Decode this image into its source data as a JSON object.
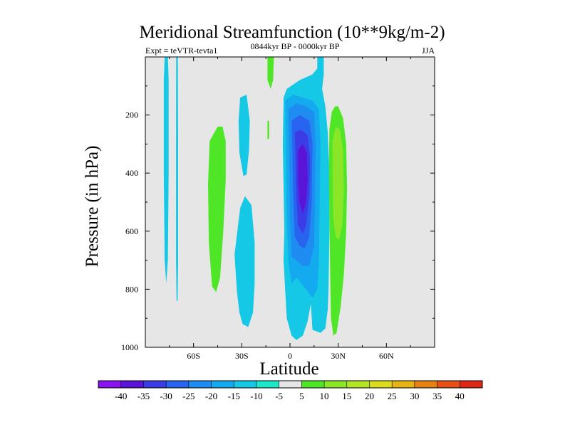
{
  "chart_data": {
    "type": "contour",
    "title": "Meridional Streamfunction (10**9kg/m-2)",
    "subtitle_left": "Expt = teVTR-tevta1",
    "subtitle_center": "0844kyr BP - 0000kyr BP",
    "season": "JJA",
    "xlabel": "Latitude",
    "ylabel": "Pressure (in hPa)",
    "xlim": [
      -90,
      90
    ],
    "ylim": [
      0,
      1000
    ],
    "y_inverted": true,
    "x_ticks": [
      {
        "value": -60,
        "label": "60S"
      },
      {
        "value": -30,
        "label": "30S"
      },
      {
        "value": 0,
        "label": "0"
      },
      {
        "value": 30,
        "label": "30N"
      },
      {
        "value": 60,
        "label": "60N"
      }
    ],
    "y_ticks": [
      {
        "value": 200,
        "label": "200"
      },
      {
        "value": 400,
        "label": "400"
      },
      {
        "value": 600,
        "label": "600"
      },
      {
        "value": 800,
        "label": "800"
      },
      {
        "value": 1000,
        "label": "1000"
      }
    ],
    "colorbar": {
      "labels": [
        "-40",
        "-35",
        "-30",
        "-25",
        "-20",
        "-15",
        "-10",
        "-5",
        "5",
        "10",
        "15",
        "20",
        "25",
        "30",
        "35",
        "40"
      ],
      "colors": [
        "#8a14f0",
        "#5a14d8",
        "#3c3ce6",
        "#2864f0",
        "#1e8cf0",
        "#14aaf0",
        "#14c8e6",
        "#1ee6c8",
        "#e6e6e6",
        "#50e628",
        "#8ce628",
        "#b4e628",
        "#dcdc1e",
        "#e6b414",
        "#e68214",
        "#e65014",
        "#dc2814"
      ]
    },
    "regions": [
      {
        "level": -10,
        "polygon": [
          [
            -78,
            0
          ],
          [
            -76,
            0
          ],
          [
            -75.5,
            80
          ],
          [
            -75.5,
            400
          ],
          [
            -76,
            700
          ],
          [
            -77,
            780
          ],
          [
            -78,
            700
          ],
          [
            -78.5,
            400
          ],
          [
            -78.5,
            80
          ]
        ]
      },
      {
        "level": -10,
        "polygon": [
          [
            -70.8,
            0
          ],
          [
            -69.8,
            0
          ],
          [
            -69.6,
            300
          ],
          [
            -69.6,
            700
          ],
          [
            -69.9,
            840
          ],
          [
            -70.6,
            840
          ],
          [
            -70.9,
            700
          ],
          [
            -70.9,
            300
          ]
        ]
      },
      {
        "level": -10,
        "polygon": [
          [
            -31,
            140
          ],
          [
            -27,
            130
          ],
          [
            -25,
            220
          ],
          [
            -25.5,
            320
          ],
          [
            -27,
            405
          ],
          [
            -29,
            410
          ],
          [
            -31.5,
            330
          ],
          [
            -32,
            220
          ]
        ]
      },
      {
        "level": -10,
        "polygon": [
          [
            -34.5,
            680
          ],
          [
            -31,
            520
          ],
          [
            -28,
            480
          ],
          [
            -24,
            510
          ],
          [
            -22,
            640
          ],
          [
            -22,
            780
          ],
          [
            -23,
            880
          ],
          [
            -26,
            930
          ],
          [
            -29.5,
            920
          ],
          [
            -31.5,
            880
          ],
          [
            -33,
            810
          ]
        ]
      },
      {
        "level": 5,
        "polygon": [
          [
            -50,
            290
          ],
          [
            -45,
            240
          ],
          [
            -42,
            240
          ],
          [
            -40,
            290
          ],
          [
            -40,
            420
          ],
          [
            -41.5,
            600
          ],
          [
            -43.5,
            760
          ],
          [
            -46,
            810
          ],
          [
            -48.5,
            790
          ],
          [
            -50.5,
            640
          ],
          [
            -51,
            440
          ]
        ]
      },
      {
        "level": 5,
        "polygon": [
          [
            -14,
            0
          ],
          [
            -10,
            0
          ],
          [
            -10.5,
            80
          ],
          [
            -12,
            110
          ],
          [
            -14,
            80
          ]
        ]
      },
      {
        "level": 5,
        "polygon": [
          [
            -14,
            220
          ],
          [
            -13,
            220
          ],
          [
            -13,
            280
          ],
          [
            -14,
            285
          ]
        ]
      },
      {
        "level": -10,
        "polygon": [
          [
            -4,
            140
          ],
          [
            -2,
            110
          ],
          [
            6,
            80
          ],
          [
            14,
            60
          ],
          [
            17,
            40
          ],
          [
            17,
            0
          ],
          [
            21,
            0
          ],
          [
            21,
            60
          ],
          [
            20,
            110
          ],
          [
            22,
            170
          ],
          [
            23.5,
            260
          ],
          [
            24.5,
            400
          ],
          [
            24.5,
            600
          ],
          [
            24,
            800
          ],
          [
            23.5,
            870
          ],
          [
            22,
            935
          ],
          [
            19,
            950
          ],
          [
            14,
            940
          ],
          [
            13,
            850
          ],
          [
            11,
            910
          ],
          [
            8,
            960
          ],
          [
            4,
            975
          ],
          [
            1,
            960
          ],
          [
            -2,
            900
          ],
          [
            -3,
            800
          ],
          [
            -4,
            700
          ],
          [
            -3.5,
            600
          ],
          [
            -4,
            450
          ],
          [
            -4.5,
            300
          ]
        ]
      },
      {
        "level": -15,
        "polygon": [
          [
            -3,
            150
          ],
          [
            2,
            130
          ],
          [
            8,
            140
          ],
          [
            14,
            150
          ],
          [
            18,
            180
          ],
          [
            19,
            300
          ],
          [
            18.5,
            500
          ],
          [
            18,
            700
          ],
          [
            17,
            800
          ],
          [
            14,
            830
          ],
          [
            10,
            800
          ],
          [
            7,
            780
          ],
          [
            4,
            760
          ],
          [
            1,
            780
          ],
          [
            -1,
            700
          ],
          [
            -2,
            550
          ],
          [
            -2.5,
            350
          ]
        ]
      },
      {
        "level": -20,
        "polygon": [
          [
            -1,
            180
          ],
          [
            4,
            160
          ],
          [
            10,
            170
          ],
          [
            15,
            190
          ],
          [
            16,
            300
          ],
          [
            15.5,
            500
          ],
          [
            15,
            650
          ],
          [
            12,
            720
          ],
          [
            8,
            720
          ],
          [
            4,
            700
          ],
          [
            1,
            690
          ],
          [
            0,
            550
          ],
          [
            -0.5,
            350
          ]
        ]
      },
      {
        "level": -25,
        "polygon": [
          [
            1,
            220
          ],
          [
            6,
            200
          ],
          [
            12,
            220
          ],
          [
            14,
            300
          ],
          [
            13.5,
            500
          ],
          [
            12,
            620
          ],
          [
            9,
            660
          ],
          [
            6,
            650
          ],
          [
            3,
            620
          ],
          [
            2,
            480
          ],
          [
            1.5,
            320
          ]
        ]
      },
      {
        "level": -30,
        "polygon": [
          [
            3,
            260
          ],
          [
            7,
            250
          ],
          [
            11,
            270
          ],
          [
            12.5,
            350
          ],
          [
            12,
            480
          ],
          [
            10,
            580
          ],
          [
            8,
            610
          ],
          [
            5,
            580
          ],
          [
            4,
            480
          ],
          [
            3.5,
            340
          ]
        ]
      },
      {
        "level": -35,
        "polygon": [
          [
            5,
            320
          ],
          [
            8,
            300
          ],
          [
            10.5,
            330
          ],
          [
            11,
            420
          ],
          [
            10,
            500
          ],
          [
            8,
            540
          ],
          [
            6,
            500
          ],
          [
            5,
            420
          ]
        ]
      },
      {
        "level": 5,
        "polygon": [
          [
            24.5,
            250
          ],
          [
            26,
            190
          ],
          [
            28,
            170
          ],
          [
            30,
            170
          ],
          [
            33,
            210
          ],
          [
            35,
            300
          ],
          [
            35.5,
            450
          ],
          [
            35,
            600
          ],
          [
            33.5,
            750
          ],
          [
            31.5,
            860
          ],
          [
            29,
            950
          ],
          [
            27,
            960
          ],
          [
            25.5,
            900
          ],
          [
            25,
            750
          ],
          [
            24.5,
            550
          ],
          [
            24.2,
            400
          ]
        ]
      },
      {
        "level": 10,
        "polygon": [
          [
            26.5,
            290
          ],
          [
            28.5,
            240
          ],
          [
            31,
            250
          ],
          [
            33,
            320
          ],
          [
            33.5,
            460
          ],
          [
            32.5,
            580
          ],
          [
            30.5,
            630
          ],
          [
            28.5,
            620
          ],
          [
            27,
            560
          ],
          [
            26.5,
            420
          ]
        ]
      }
    ]
  }
}
